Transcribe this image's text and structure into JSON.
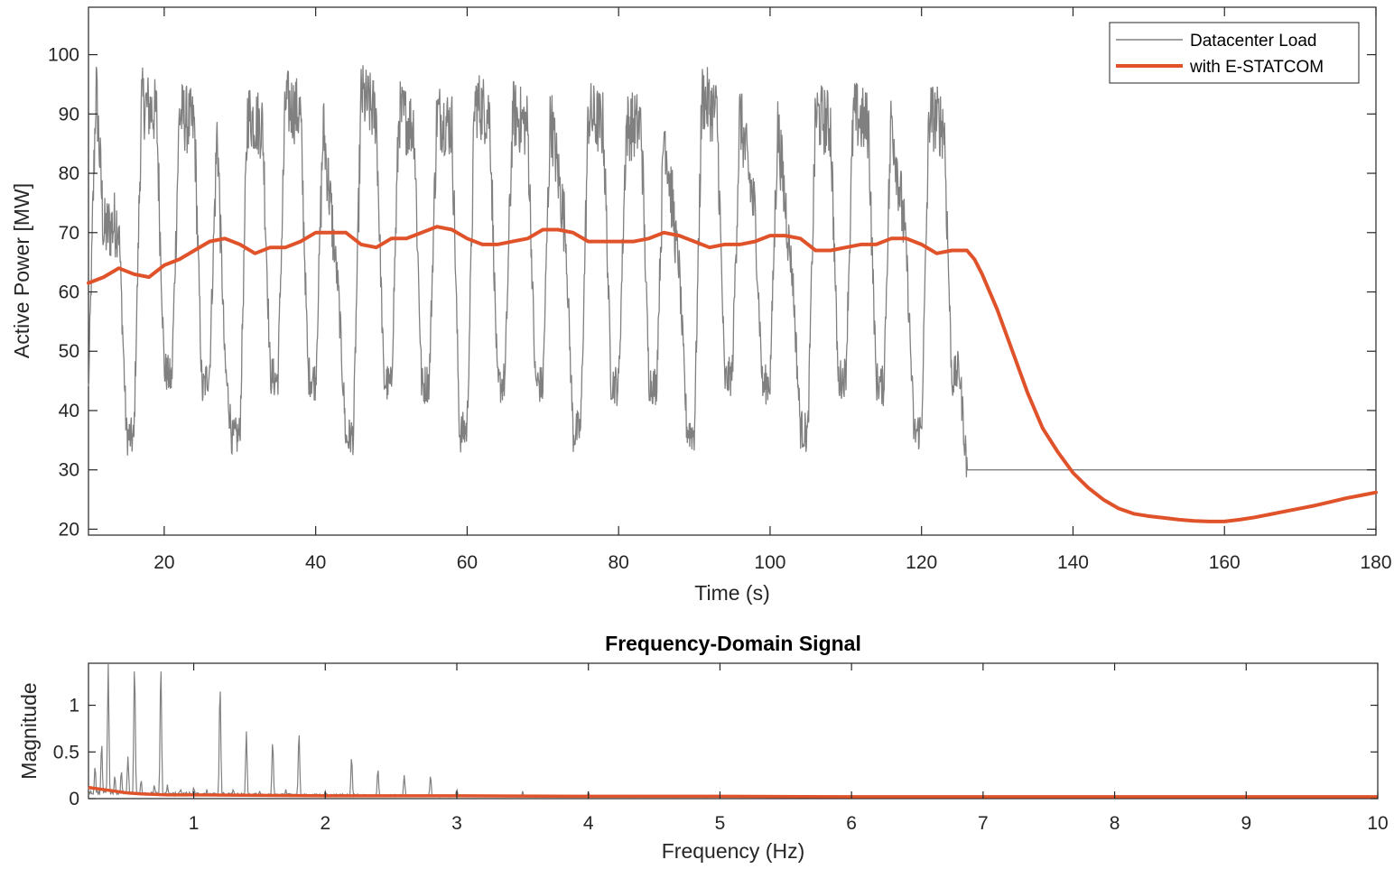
{
  "chart_data": [
    {
      "type": "line",
      "title": "",
      "xlabel": "Time (s)",
      "ylabel": "Active Power [MW]",
      "xlim": [
        10,
        180
      ],
      "ylim": [
        19,
        108
      ],
      "xticks": [
        20,
        40,
        60,
        80,
        100,
        120,
        140,
        160,
        180
      ],
      "yticks": [
        20,
        30,
        40,
        50,
        60,
        70,
        80,
        90,
        100
      ],
      "grid": false,
      "legend_position": "top-right",
      "series": [
        {
          "name": "Datacenter Load",
          "color": "#808080",
          "description_levels": {
            "high": 90,
            "mid": 45,
            "low": 36,
            "after_step": 30
          },
          "pulse_period_s": 5,
          "step_down_time": 126,
          "points": [
            [
              10,
              43
            ],
            [
              11,
              95
            ],
            [
              12,
              70
            ],
            [
              14,
              72
            ],
            [
              15,
              36
            ],
            [
              16,
              35
            ],
            [
              17,
              92
            ],
            [
              19,
              90
            ],
            [
              20,
              47
            ],
            [
              21,
              45
            ],
            [
              22,
              90
            ],
            [
              24,
              88
            ],
            [
              25,
              43
            ],
            [
              26,
              47
            ],
            [
              27,
              88
            ],
            [
              28,
              48
            ],
            [
              29,
              35
            ],
            [
              30,
              36
            ],
            [
              31,
              90
            ],
            [
              33,
              88
            ],
            [
              34,
              46
            ],
            [
              35,
              45
            ],
            [
              36,
              92
            ],
            [
              38,
              90
            ],
            [
              39,
              46
            ],
            [
              40,
              45
            ],
            [
              41,
              88
            ],
            [
              43,
              60
            ],
            [
              44,
              35
            ],
            [
              45,
              36
            ],
            [
              46,
              93
            ],
            [
              48,
              90
            ],
            [
              49,
              45
            ],
            [
              50,
              44
            ],
            [
              51,
              90
            ],
            [
              53,
              88
            ],
            [
              54,
              44
            ],
            [
              55,
              45
            ],
            [
              56,
              90
            ],
            [
              58,
              88
            ],
            [
              59,
              36
            ],
            [
              60,
              37
            ],
            [
              61,
              92
            ],
            [
              63,
              90
            ],
            [
              64,
              44
            ],
            [
              65,
              45
            ],
            [
              66,
              90
            ],
            [
              68,
              88
            ],
            [
              69,
              45
            ],
            [
              70,
              44
            ],
            [
              71,
              90
            ],
            [
              73,
              70
            ],
            [
              74,
              36
            ],
            [
              75,
              37
            ],
            [
              76,
              90
            ],
            [
              78,
              88
            ],
            [
              79,
              45
            ],
            [
              80,
              44
            ],
            [
              81,
              88
            ],
            [
              83,
              88
            ],
            [
              84,
              45
            ],
            [
              85,
              44
            ],
            [
              86,
              88
            ],
            [
              88,
              64
            ],
            [
              89,
              37
            ],
            [
              90,
              36
            ],
            [
              91,
              93
            ],
            [
              93,
              90
            ],
            [
              94,
              45
            ],
            [
              95,
              46
            ],
            [
              96,
              90
            ],
            [
              98,
              73
            ],
            [
              99,
              44
            ],
            [
              100,
              45
            ],
            [
              101,
              88
            ],
            [
              103,
              62
            ],
            [
              104,
              37
            ],
            [
              105,
              36
            ],
            [
              106,
              90
            ],
            [
              108,
              88
            ],
            [
              109,
              45
            ],
            [
              110,
              46
            ],
            [
              111,
              90
            ],
            [
              113,
              88
            ],
            [
              114,
              45
            ],
            [
              115,
              44
            ],
            [
              116,
              90
            ],
            [
              118,
              67
            ],
            [
              119,
              36
            ],
            [
              120,
              37
            ],
            [
              121,
              90
            ],
            [
              123,
              88
            ],
            [
              124,
              45
            ],
            [
              125,
              47
            ],
            [
              126,
              30
            ],
            [
              180,
              30
            ]
          ]
        },
        {
          "name": "with E-STATCOM",
          "color": "#e0532a",
          "points": [
            [
              10,
              61.5
            ],
            [
              12,
              62.5
            ],
            [
              14,
              64
            ],
            [
              16,
              63
            ],
            [
              18,
              62.5
            ],
            [
              20,
              64.5
            ],
            [
              22,
              65.5
            ],
            [
              24,
              67
            ],
            [
              26,
              68.5
            ],
            [
              28,
              69
            ],
            [
              30,
              68
            ],
            [
              32,
              66.5
            ],
            [
              34,
              67.5
            ],
            [
              36,
              67.5
            ],
            [
              38,
              68.5
            ],
            [
              40,
              70
            ],
            [
              42,
              70
            ],
            [
              44,
              70
            ],
            [
              46,
              68
            ],
            [
              48,
              67.5
            ],
            [
              50,
              69
            ],
            [
              52,
              69
            ],
            [
              54,
              70
            ],
            [
              56,
              71
            ],
            [
              58,
              70.5
            ],
            [
              60,
              69
            ],
            [
              62,
              68
            ],
            [
              64,
              68
            ],
            [
              66,
              68.5
            ],
            [
              68,
              69
            ],
            [
              70,
              70.5
            ],
            [
              72,
              70.5
            ],
            [
              74,
              70
            ],
            [
              76,
              68.5
            ],
            [
              78,
              68.5
            ],
            [
              80,
              68.5
            ],
            [
              82,
              68.5
            ],
            [
              84,
              69
            ],
            [
              86,
              70
            ],
            [
              88,
              69.5
            ],
            [
              90,
              68.5
            ],
            [
              92,
              67.5
            ],
            [
              94,
              68
            ],
            [
              96,
              68
            ],
            [
              98,
              68.5
            ],
            [
              100,
              69.5
            ],
            [
              102,
              69.5
            ],
            [
              104,
              69
            ],
            [
              106,
              67
            ],
            [
              108,
              67
            ],
            [
              110,
              67.5
            ],
            [
              112,
              68
            ],
            [
              114,
              68
            ],
            [
              116,
              69
            ],
            [
              118,
              69
            ],
            [
              120,
              68
            ],
            [
              122,
              66.5
            ],
            [
              124,
              67
            ],
            [
              126,
              67
            ],
            [
              127,
              65.5
            ],
            [
              128,
              63
            ],
            [
              130,
              57
            ],
            [
              132,
              50
            ],
            [
              134,
              43
            ],
            [
              136,
              37
            ],
            [
              138,
              33
            ],
            [
              140,
              29.5
            ],
            [
              142,
              27
            ],
            [
              144,
              25
            ],
            [
              146,
              23.5
            ],
            [
              148,
              22.6
            ],
            [
              150,
              22.2
            ],
            [
              152,
              21.9
            ],
            [
              154,
              21.6
            ],
            [
              156,
              21.4
            ],
            [
              158,
              21.3
            ],
            [
              160,
              21.3
            ],
            [
              162,
              21.6
            ],
            [
              164,
              22
            ],
            [
              166,
              22.5
            ],
            [
              168,
              23
            ],
            [
              170,
              23.5
            ],
            [
              172,
              24
            ],
            [
              174,
              24.6
            ],
            [
              176,
              25.2
            ],
            [
              178,
              25.7
            ],
            [
              180,
              26.2
            ]
          ]
        }
      ]
    },
    {
      "type": "line",
      "title": "Frequency-Domain Signal",
      "xlabel": "Frequency (Hz)",
      "ylabel": "Magnitude",
      "xlim": [
        0.2,
        10
      ],
      "ylim": [
        0,
        1.45
      ],
      "xticks": [
        1,
        2,
        3,
        4,
        5,
        6,
        7,
        8,
        9,
        10
      ],
      "yticks": [
        0,
        0.5,
        1
      ],
      "ytick_labels": [
        "0",
        "0.5",
        "1"
      ],
      "grid": false,
      "series": [
        {
          "color": "#808080",
          "peaks": [
            [
              0.2,
              0.12
            ],
            [
              0.25,
              0.35
            ],
            [
              0.3,
              0.6
            ],
            [
              0.35,
              1.45
            ],
            [
              0.4,
              0.25
            ],
            [
              0.45,
              0.3
            ],
            [
              0.5,
              0.45
            ],
            [
              0.55,
              1.45
            ],
            [
              0.6,
              0.2
            ],
            [
              0.7,
              0.15
            ],
            [
              0.75,
              1.45
            ],
            [
              0.8,
              0.15
            ],
            [
              0.9,
              0.1
            ],
            [
              1.0,
              0.12
            ],
            [
              1.1,
              0.1
            ],
            [
              1.2,
              1.22
            ],
            [
              1.3,
              0.1
            ],
            [
              1.4,
              0.72
            ],
            [
              1.5,
              0.08
            ],
            [
              1.6,
              0.62
            ],
            [
              1.7,
              0.1
            ],
            [
              1.8,
              0.72
            ],
            [
              2.0,
              0.08
            ],
            [
              2.2,
              0.45
            ],
            [
              2.4,
              0.32
            ],
            [
              2.6,
              0.25
            ],
            [
              2.8,
              0.25
            ],
            [
              3.0,
              0.1
            ],
            [
              3.5,
              0.08
            ],
            [
              4.0,
              0.07
            ]
          ],
          "baseline": 0.04
        },
        {
          "color": "#e0532a",
          "points": [
            [
              0.2,
              0.12
            ],
            [
              0.3,
              0.1
            ],
            [
              0.4,
              0.08
            ],
            [
              0.5,
              0.06
            ],
            [
              0.6,
              0.05
            ],
            [
              0.8,
              0.04
            ],
            [
              1.0,
              0.04
            ],
            [
              1.5,
              0.035
            ],
            [
              2.0,
              0.03
            ],
            [
              3.0,
              0.03
            ],
            [
              4.0,
              0.025
            ],
            [
              5.0,
              0.025
            ],
            [
              6.0,
              0.02
            ],
            [
              7.0,
              0.02
            ],
            [
              8.0,
              0.02
            ],
            [
              9.0,
              0.02
            ],
            [
              10.0,
              0.02
            ]
          ]
        }
      ]
    }
  ]
}
